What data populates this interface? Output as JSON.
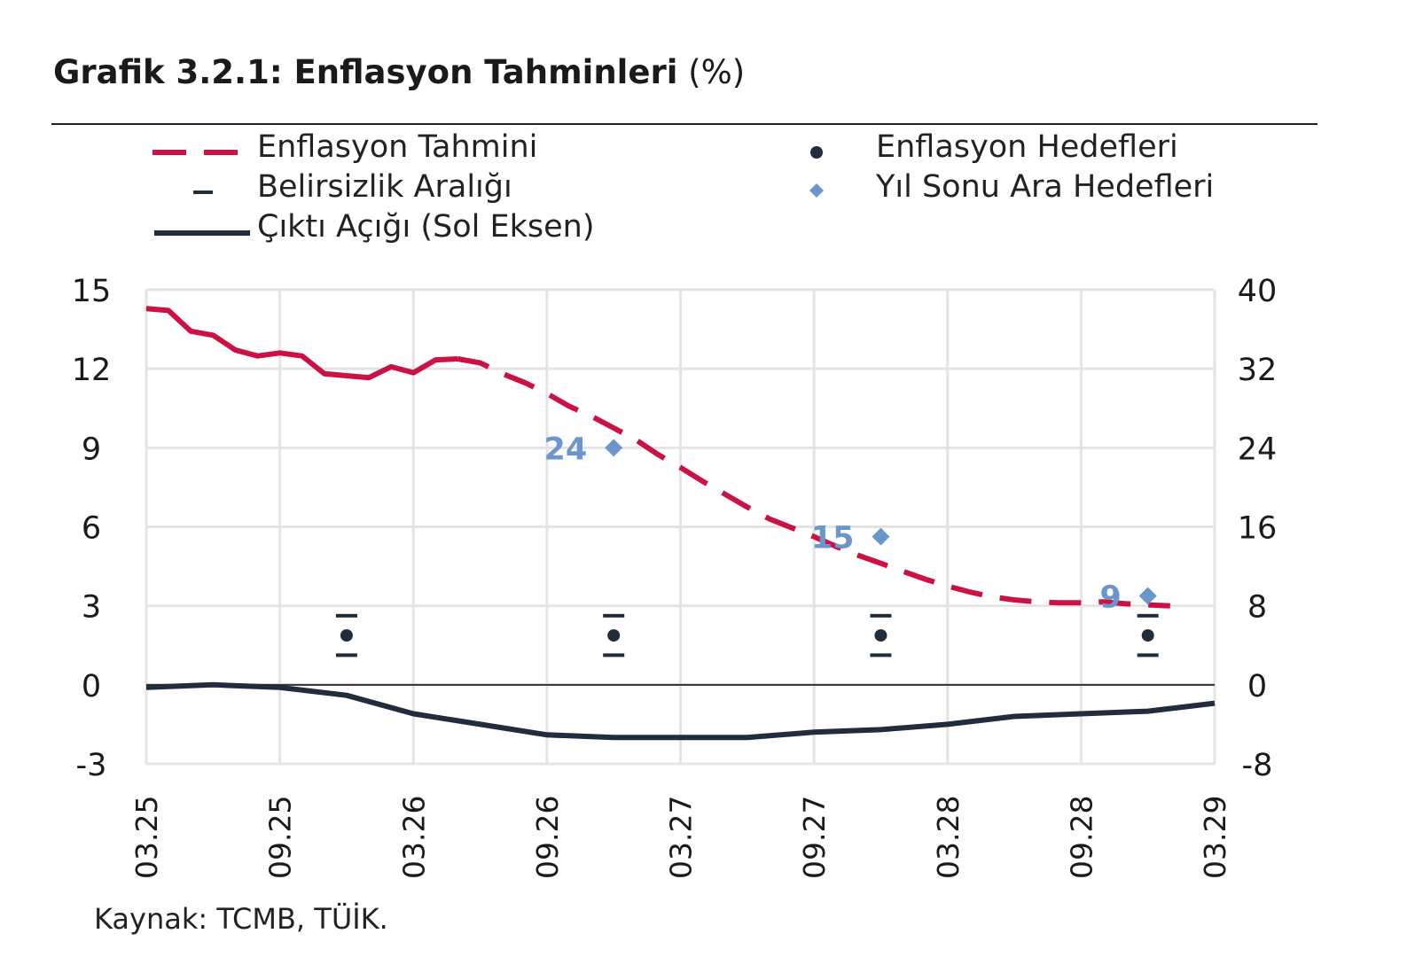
{
  "title": {
    "bold": "Grafik 3.2.1: Enflasyon Tahminleri",
    "unit": "(%)"
  },
  "legend": {
    "forecast": "Enflasyon Tahmini",
    "uncertainty": "Belirsizlik Aralığı",
    "output_gap": "Çıktı Açığı (Sol Eksen)",
    "targets": "Enflasyon Hedefleri",
    "interim_targets": "Yıl Sonu Ara Hedefleri"
  },
  "source": "Kaynak: TCMB, TÜİK.",
  "colors": {
    "forecast": "#cc1144",
    "output_gap": "#1f2d3d",
    "interim": "#6b96cc",
    "target": "#1f2d3d",
    "grid": "#e4e4e4"
  },
  "chart_data": {
    "type": "line",
    "x_ticks": [
      "03.25",
      "09.25",
      "03.26",
      "09.26",
      "03.27",
      "09.27",
      "03.28",
      "09.28",
      "03.29"
    ],
    "x_range": [
      0,
      48
    ],
    "y_left": {
      "ticks": [
        "15",
        "12",
        "9",
        "6",
        "3",
        "0",
        "-3"
      ],
      "range": [
        -3,
        15
      ]
    },
    "y_right": {
      "ticks": [
        "40",
        "32",
        "24",
        "16",
        "8",
        "0",
        "-8"
      ],
      "range": [
        -8,
        40
      ]
    },
    "grid": true,
    "series": [
      {
        "name": "Enflasyon Tahmini",
        "axis": "right",
        "actual": [
          [
            0,
            38.1
          ],
          [
            1,
            37.9
          ],
          [
            2,
            35.8
          ],
          [
            3,
            35.4
          ],
          [
            4,
            33.9
          ],
          [
            5,
            33.3
          ],
          [
            6,
            33.6
          ],
          [
            7,
            33.3
          ],
          [
            8,
            31.5
          ],
          [
            9,
            31.3
          ],
          [
            10,
            31.1
          ],
          [
            11,
            32.2
          ],
          [
            12,
            31.6
          ],
          [
            13,
            32.9
          ],
          [
            14,
            33.0
          ]
        ],
        "forecast": [
          [
            14,
            33.0
          ],
          [
            15,
            32.6
          ],
          [
            16,
            31.5
          ],
          [
            17,
            30.6
          ],
          [
            18,
            29.5
          ],
          [
            19,
            28.2
          ],
          [
            20,
            27.2
          ],
          [
            21,
            26.0
          ],
          [
            22,
            24.8
          ],
          [
            23,
            23.3
          ],
          [
            24,
            22.0
          ],
          [
            25,
            20.6
          ],
          [
            26,
            19.3
          ],
          [
            27,
            18.0
          ],
          [
            28,
            16.8
          ],
          [
            29,
            15.9
          ],
          [
            30,
            15.0
          ],
          [
            31,
            14.0
          ],
          [
            32,
            13.1
          ],
          [
            33,
            12.3
          ],
          [
            34,
            11.5
          ],
          [
            35,
            10.7
          ],
          [
            36,
            10.0
          ],
          [
            37,
            9.4
          ],
          [
            38,
            8.9
          ],
          [
            39,
            8.6
          ],
          [
            40,
            8.4
          ],
          [
            41,
            8.3
          ],
          [
            42,
            8.3
          ],
          [
            43,
            8.4
          ],
          [
            44,
            8.2
          ],
          [
            45,
            8.1
          ],
          [
            46,
            8.0
          ]
        ]
      },
      {
        "name": "Çıktı Açığı (Sol Eksen)",
        "axis": "left",
        "points": [
          [
            0,
            -0.1
          ],
          [
            3,
            0.0
          ],
          [
            6,
            -0.1
          ],
          [
            9,
            -0.4
          ],
          [
            12,
            -1.1
          ],
          [
            15,
            -1.5
          ],
          [
            18,
            -1.9
          ],
          [
            21,
            -2.0
          ],
          [
            24,
            -2.0
          ],
          [
            27,
            -2.0
          ],
          [
            30,
            -1.8
          ],
          [
            33,
            -1.7
          ],
          [
            36,
            -1.5
          ],
          [
            39,
            -1.2
          ],
          [
            42,
            -1.1
          ],
          [
            45,
            -1.0
          ],
          [
            48,
            -0.7
          ]
        ]
      }
    ],
    "interim_targets": [
      {
        "x": 21,
        "value": 24,
        "label": "24"
      },
      {
        "x": 33,
        "value": 15,
        "label": "15"
      },
      {
        "x": 45,
        "value": 9,
        "label": "9"
      }
    ],
    "inflation_targets": [
      {
        "x": 9,
        "value": 5.0,
        "band": [
          3.0,
          7.0
        ]
      },
      {
        "x": 21,
        "value": 5.0,
        "band": [
          3.0,
          7.0
        ]
      },
      {
        "x": 33,
        "value": 5.0,
        "band": [
          3.0,
          7.0
        ]
      },
      {
        "x": 45,
        "value": 5.0,
        "band": [
          3.0,
          7.0
        ]
      }
    ]
  }
}
